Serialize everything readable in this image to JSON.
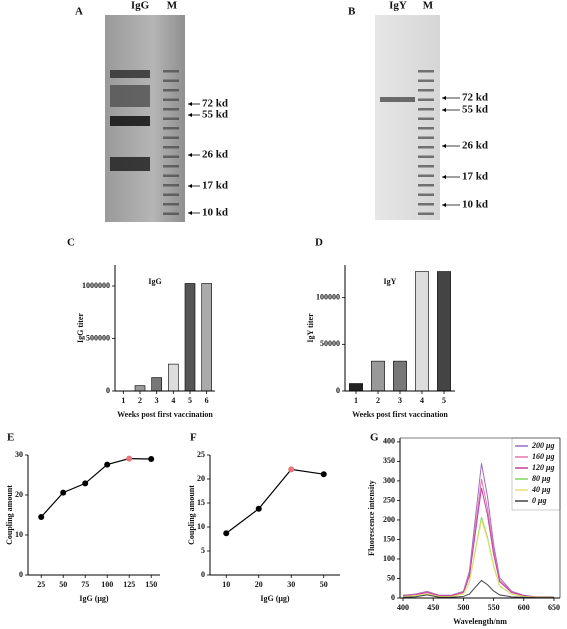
{
  "gels": [
    {
      "label": "A",
      "lanes": [
        "IgG",
        "M"
      ],
      "markers": [
        "72 kd",
        "55 kd",
        "26 kd",
        "17 kd",
        "10 kd"
      ]
    },
    {
      "label": "B",
      "lanes": [
        "IgY",
        "M"
      ],
      "markers": [
        "72 kd",
        "55 kd",
        "26 kd",
        "17 kd",
        "10 kd"
      ]
    }
  ],
  "chart_data": [
    {
      "type": "bar",
      "label": "C",
      "title": "IgG",
      "xlabel": "Weeks post first vaccination",
      "ylabel": "IgG titer",
      "categories": [
        "1",
        "2",
        "3",
        "4",
        "5",
        "6"
      ],
      "values": [
        0,
        51200,
        128000,
        256000,
        1024000,
        1024000
      ],
      "colors": [
        "#222222",
        "#999999",
        "#777777",
        "#dddddd",
        "#555555",
        "#aaaaaa"
      ],
      "ylim": [
        0,
        1200000
      ],
      "yticks": [
        0,
        500000,
        1000000
      ]
    },
    {
      "type": "bar",
      "label": "D",
      "title": "IgY",
      "xlabel": "Weeks post first vaccination",
      "ylabel": "IgY titer",
      "categories": [
        "1",
        "2",
        "3",
        "4",
        "5"
      ],
      "values": [
        8000,
        32000,
        32000,
        128000,
        128000
      ],
      "colors": [
        "#222222",
        "#999999",
        "#777777",
        "#dddddd",
        "#444444"
      ],
      "ylim": [
        0,
        135000
      ],
      "yticks": [
        0,
        50000,
        100000
      ]
    },
    {
      "type": "line",
      "label": "E",
      "xlabel": "IgG (μg)",
      "ylabel": "Coupling amount",
      "x": [
        25,
        50,
        75,
        100,
        125,
        150
      ],
      "values": [
        14.5,
        20.6,
        22.9,
        27.6,
        29.1,
        29.0
      ],
      "color": "#000000",
      "point_colors": [
        "#000000",
        "#000000",
        "#000000",
        "#000000",
        "#e8737a",
        "#000000"
      ],
      "xlim": [
        10,
        160
      ],
      "xticks": [
        25,
        50,
        75,
        100,
        125,
        150
      ],
      "ylim": [
        0,
        30
      ],
      "yticks": [
        0,
        10,
        20,
        30
      ]
    },
    {
      "type": "line",
      "label": "F",
      "xlabel": "IgG (μg)",
      "ylabel": "Coupling amount",
      "categories": [
        "10",
        "20",
        "30",
        "50"
      ],
      "values": [
        8.7,
        13.8,
        22.0,
        21.0
      ],
      "color": "#000000",
      "point_colors": [
        "#000000",
        "#000000",
        "#e8737a",
        "#000000"
      ],
      "ylim": [
        0,
        25
      ],
      "yticks": [
        0,
        5,
        10,
        15,
        20,
        25
      ]
    },
    {
      "type": "spectra",
      "label": "G",
      "xlabel": "Wavelength/nm",
      "ylabel": "Fluorescence intensity",
      "legend": "top right",
      "x": [
        400,
        420,
        440,
        460,
        480,
        500,
        510,
        520,
        530,
        540,
        550,
        560,
        580,
        600,
        620,
        650
      ],
      "series": [
        {
          "name": "200 μg",
          "color": "#9b6fc4",
          "values": [
            7,
            10,
            17,
            7,
            7,
            17,
            69,
            207,
            345,
            259,
            138,
            52,
            17,
            7,
            3,
            3
          ]
        },
        {
          "name": "160 μg",
          "color": "#e377b0",
          "values": [
            6,
            9,
            15,
            6,
            6,
            15,
            61,
            183,
            305,
            229,
            122,
            46,
            15,
            6,
            3,
            3
          ]
        },
        {
          "name": "120 μg",
          "color": "#c8409a",
          "values": [
            6,
            8,
            14,
            6,
            6,
            14,
            56,
            169,
            282,
            212,
            113,
            42,
            14,
            6,
            3,
            3
          ]
        },
        {
          "name": "80 μg",
          "color": "#7ed957",
          "values": [
            4,
            6,
            10,
            4,
            4,
            10,
            41,
            124,
            207,
            155,
            83,
            31,
            10,
            4,
            2,
            2
          ]
        },
        {
          "name": "40 μg",
          "color": "#e8e070",
          "values": [
            4,
            6,
            10,
            4,
            4,
            10,
            40,
            120,
            200,
            150,
            80,
            30,
            10,
            4,
            2,
            2
          ]
        },
        {
          "name": "0 μg",
          "color": "#444444",
          "values": [
            2,
            3,
            8,
            2,
            2,
            4,
            10,
            28,
            45,
            34,
            18,
            8,
            3,
            2,
            1,
            1
          ]
        }
      ],
      "xlim": [
        395,
        660
      ],
      "xticks": [
        400,
        450,
        500,
        550,
        600,
        650
      ],
      "ylim": [
        0,
        410
      ],
      "yticks": [
        0,
        50,
        100,
        150,
        200,
        250,
        300,
        350,
        400
      ]
    }
  ]
}
